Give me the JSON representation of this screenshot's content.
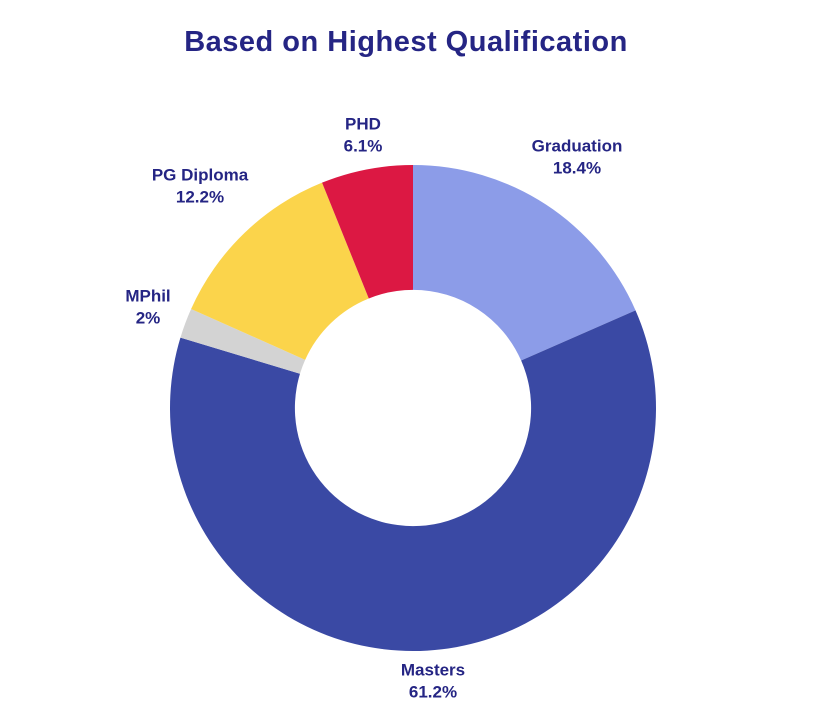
{
  "title": "Based on Highest Qualification",
  "colors": {
    "background": "#FFFFFF",
    "text": "#252584",
    "graduation": "#8C9CE8",
    "masters": "#3A49A4",
    "mphil": "#D3D3D3",
    "pg_diploma": "#FBD44B",
    "phd": "#DC1843"
  },
  "chart_data": {
    "type": "pie",
    "subtype": "donut",
    "title": "Based on Highest Qualification",
    "categories": [
      "Graduation",
      "Masters",
      "MPhil",
      "PG Diploma",
      "PHD"
    ],
    "values": [
      18.4,
      61.2,
      2,
      12.2,
      6.1
    ],
    "units": "%",
    "slice_colors": [
      "#8C9CE8",
      "#3A49A4",
      "#D3D3D3",
      "#FBD44B",
      "#DC1843"
    ],
    "start_angle_deg": 0,
    "direction": "clockwise",
    "inner_radius_ratio": 0.486,
    "legend_position": "none",
    "label_style": "outside, category name with percent value"
  },
  "labels": {
    "phd": {
      "name": "PHD",
      "pct": "6.1%"
    },
    "graduation": {
      "name": "Graduation",
      "pct": "18.4%"
    },
    "pg_diploma": {
      "name": "PG Diploma",
      "pct": "12.2%"
    },
    "mphil": {
      "name": "MPhil",
      "pct": "2%"
    },
    "masters": {
      "name": "Masters",
      "pct": "61.2%"
    }
  }
}
